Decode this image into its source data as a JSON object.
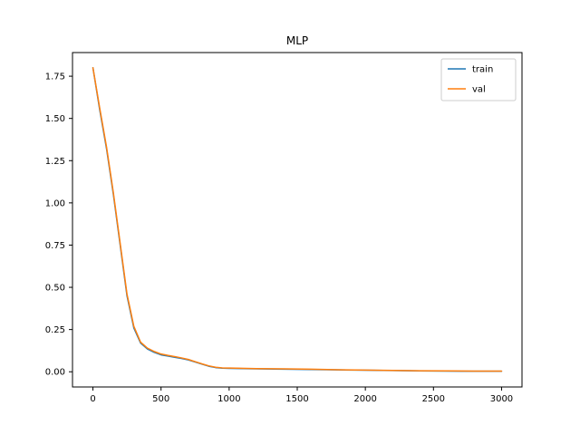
{
  "chart_data": {
    "type": "line",
    "title": "MLP",
    "xlabel": "",
    "ylabel": "",
    "xlim": [
      -150,
      3150
    ],
    "ylim": [
      -0.09,
      1.89
    ],
    "xticks": [
      0,
      500,
      1000,
      1500,
      2000,
      2500,
      3000
    ],
    "xtick_labels": [
      "0",
      "500",
      "1000",
      "1500",
      "2000",
      "2500",
      "3000"
    ],
    "yticks": [
      0.0,
      0.25,
      0.5,
      0.75,
      1.0,
      1.25,
      1.5,
      1.75
    ],
    "ytick_labels": [
      "0.00",
      "0.25",
      "0.50",
      "0.75",
      "1.00",
      "1.25",
      "1.50",
      "1.75"
    ],
    "grid": false,
    "legend_position": "top-right",
    "series": [
      {
        "name": "train",
        "color": "#1f77b4",
        "x": [
          0,
          50,
          100,
          150,
          200,
          250,
          300,
          350,
          400,
          450,
          500,
          550,
          600,
          650,
          700,
          750,
          800,
          850,
          900,
          950,
          1000,
          1200,
          1400,
          1600,
          1800,
          2000,
          2200,
          2400,
          2600,
          2800,
          3000
        ],
        "y": [
          1.8,
          1.55,
          1.32,
          1.05,
          0.75,
          0.45,
          0.26,
          0.17,
          0.135,
          0.115,
          0.1,
          0.093,
          0.086,
          0.079,
          0.07,
          0.058,
          0.045,
          0.033,
          0.025,
          0.021,
          0.02,
          0.017,
          0.015,
          0.013,
          0.011,
          0.009,
          0.007,
          0.005,
          0.004,
          0.003,
          0.003
        ]
      },
      {
        "name": "val",
        "color": "#ff7f0e",
        "x": [
          0,
          50,
          100,
          150,
          200,
          250,
          300,
          350,
          400,
          450,
          500,
          550,
          600,
          650,
          700,
          750,
          800,
          850,
          900,
          950,
          1000,
          1200,
          1400,
          1600,
          1800,
          2000,
          2200,
          2400,
          2600,
          2800,
          3000
        ],
        "y": [
          1.8,
          1.56,
          1.33,
          1.06,
          0.76,
          0.46,
          0.27,
          0.175,
          0.14,
          0.12,
          0.105,
          0.097,
          0.09,
          0.082,
          0.073,
          0.06,
          0.047,
          0.035,
          0.027,
          0.023,
          0.022,
          0.019,
          0.017,
          0.015,
          0.012,
          0.01,
          0.008,
          0.006,
          0.005,
          0.004,
          0.004
        ]
      }
    ]
  }
}
